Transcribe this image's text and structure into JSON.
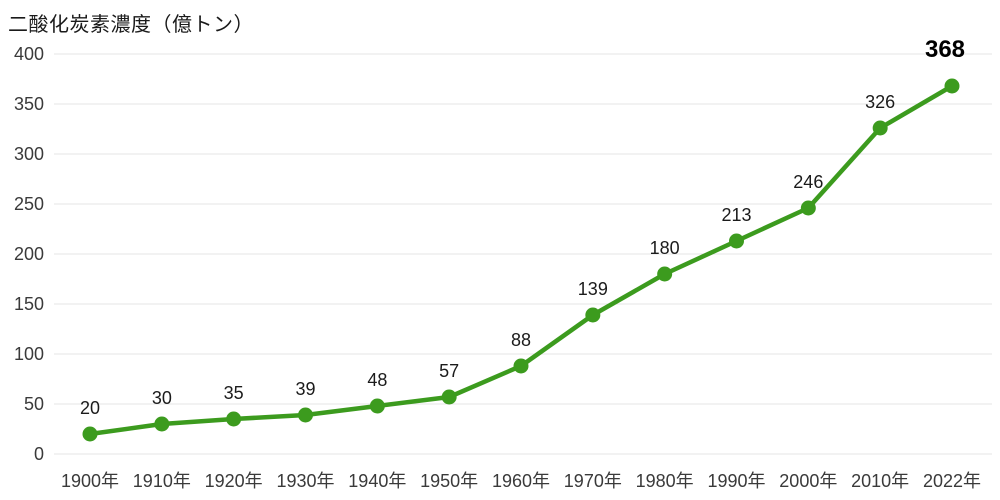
{
  "chart_data": {
    "type": "line",
    "title": "二酸化炭素濃度（億トン）",
    "xlabel": "",
    "ylabel": "二酸化炭素濃度（億トン）",
    "categories": [
      "1900年",
      "1910年",
      "1920年",
      "1930年",
      "1940年",
      "1950年",
      "1960年",
      "1970年",
      "1980年",
      "1990年",
      "2000年",
      "2010年",
      "2022年"
    ],
    "values": [
      20,
      30,
      35,
      39,
      48,
      57,
      88,
      139,
      180,
      213,
      246,
      326,
      368
    ],
    "yticks": [
      0,
      50,
      100,
      150,
      200,
      250,
      300,
      350,
      400
    ],
    "ylim": [
      0,
      400
    ],
    "grid": true,
    "legend_position": "none",
    "line_color": "#3C9B1E",
    "marker_color": "#3C9B1E",
    "grid_color": "#e4e4e4",
    "tick_color": "#3a3a3a",
    "data_label_color": "#1b1b1b",
    "emphasis_color": "#000000",
    "emphasize_last_label": true
  }
}
